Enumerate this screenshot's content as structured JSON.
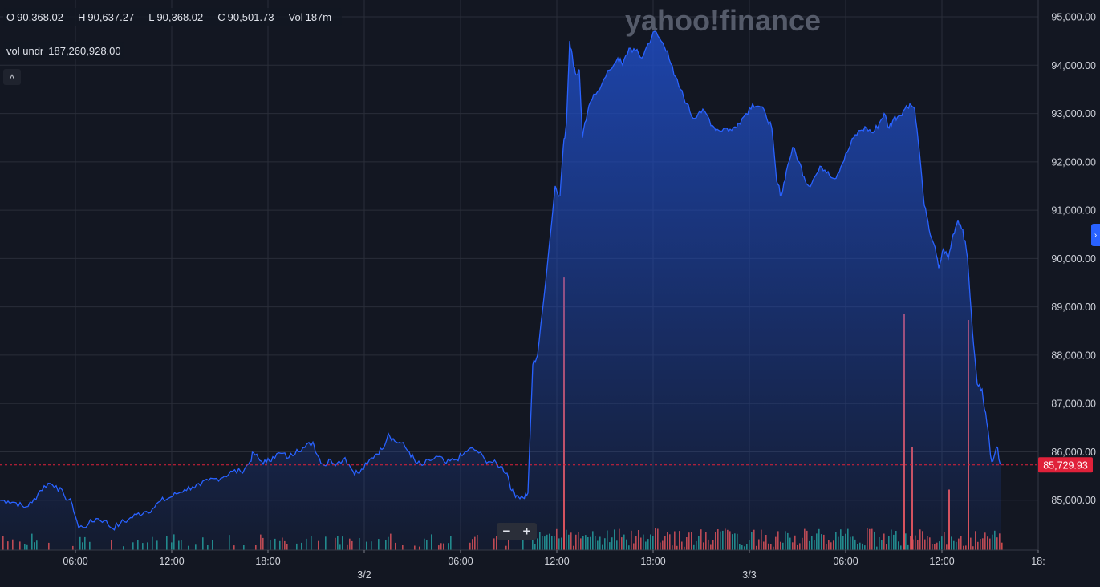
{
  "legend": {
    "open_label": "O",
    "open": "90,368.02",
    "high_label": "H",
    "high": "90,637.27",
    "low_label": "L",
    "low": "90,368.02",
    "close_label": "C",
    "close": "90,501.73",
    "vol_label": "Vol",
    "vol": "187m"
  },
  "volume_indicator": {
    "label": "vol undr",
    "value": "187,260,928.00"
  },
  "controls": {
    "collapse": "˄",
    "zoom_out": "−",
    "zoom_in": "+",
    "scroll_right": "›"
  },
  "watermark": "yahoo!finance",
  "colors": {
    "background": "#131722",
    "line": "#2962ff",
    "area_top": "#1f4cc2",
    "grid": "#2a2e39",
    "volume_up": "#26a69a",
    "volume_down": "#ef5350",
    "last_price": "#e0213a"
  },
  "chart_data": {
    "type": "area",
    "title": "",
    "xlabel": "",
    "ylabel": "",
    "ylim": [
      84050,
      95150
    ],
    "y_ticks": [
      "95,000.00",
      "94,000.00",
      "93,000.00",
      "92,000.00",
      "91,000.00",
      "90,000.00",
      "89,000.00",
      "88,000.00",
      "87,000.00",
      "86,000.00",
      "85,000.00"
    ],
    "x_range": [
      0,
      64.7
    ],
    "x_ticks": [
      {
        "x": 4.7,
        "label": "06:00"
      },
      {
        "x": 10.7,
        "label": "12:00"
      },
      {
        "x": 16.7,
        "label": "18:00"
      },
      {
        "x": 22.7,
        "label": "3/2",
        "date": true
      },
      {
        "x": 28.7,
        "label": "06:00"
      },
      {
        "x": 34.7,
        "label": "12:00"
      },
      {
        "x": 40.7,
        "label": "18:00"
      },
      {
        "x": 46.7,
        "label": "3/3",
        "date": true
      },
      {
        "x": 52.7,
        "label": "06:00"
      },
      {
        "x": 58.7,
        "label": "12:00"
      },
      {
        "x": 64.7,
        "label": "18:"
      }
    ],
    "last_price": "85,729.93",
    "last_price_value": 85729.93,
    "grid": true,
    "series": [
      {
        "values": [
          [
            0.0,
            85000
          ],
          [
            0.5,
            84980
          ],
          [
            1.0,
            84950
          ],
          [
            1.5,
            84850
          ],
          [
            2.0,
            84950
          ],
          [
            2.5,
            85200
          ],
          [
            3.0,
            85350
          ],
          [
            3.5,
            85300
          ],
          [
            4.0,
            85100
          ],
          [
            4.5,
            84920
          ],
          [
            4.9,
            84430
          ],
          [
            5.5,
            84500
          ],
          [
            6.0,
            84620
          ],
          [
            6.5,
            84580
          ],
          [
            7.0,
            84420
          ],
          [
            7.5,
            84520
          ],
          [
            8.0,
            84600
          ],
          [
            8.5,
            84700
          ],
          [
            9.0,
            84760
          ],
          [
            9.5,
            84820
          ],
          [
            10.0,
            84980
          ],
          [
            10.5,
            85040
          ],
          [
            11.0,
            85130
          ],
          [
            11.5,
            85220
          ],
          [
            12.0,
            85280
          ],
          [
            12.5,
            85300
          ],
          [
            13.0,
            85410
          ],
          [
            13.5,
            85450
          ],
          [
            14.0,
            85500
          ],
          [
            14.5,
            85600
          ],
          [
            15.0,
            85590
          ],
          [
            15.5,
            85750
          ],
          [
            15.8,
            85980
          ],
          [
            16.2,
            85820
          ],
          [
            16.6,
            85780
          ],
          [
            17.0,
            85900
          ],
          [
            17.5,
            85970
          ],
          [
            18.0,
            85880
          ],
          [
            18.5,
            86050
          ],
          [
            19.0,
            86090
          ],
          [
            19.5,
            86200
          ],
          [
            19.8,
            85920
          ],
          [
            20.2,
            85720
          ],
          [
            20.6,
            85840
          ],
          [
            21.0,
            85760
          ],
          [
            21.5,
            85880
          ],
          [
            22.0,
            85600
          ],
          [
            22.4,
            85560
          ],
          [
            22.9,
            85760
          ],
          [
            23.4,
            85950
          ],
          [
            23.8,
            86050
          ],
          [
            24.2,
            86380
          ],
          [
            24.6,
            86220
          ],
          [
            25.0,
            86180
          ],
          [
            25.5,
            86000
          ],
          [
            25.9,
            85780
          ],
          [
            26.3,
            85720
          ],
          [
            26.8,
            85820
          ],
          [
            27.3,
            85900
          ],
          [
            27.8,
            85760
          ],
          [
            28.3,
            85830
          ],
          [
            28.8,
            85920
          ],
          [
            29.2,
            86050
          ],
          [
            29.7,
            86030
          ],
          [
            30.2,
            85850
          ],
          [
            30.7,
            85780
          ],
          [
            31.2,
            85700
          ],
          [
            31.6,
            85560
          ],
          [
            31.9,
            85200
          ],
          [
            32.2,
            85100
          ],
          [
            32.6,
            85050
          ],
          [
            32.9,
            85150
          ],
          [
            33.2,
            87800
          ],
          [
            33.5,
            88000
          ],
          [
            33.9,
            89200
          ],
          [
            34.3,
            90500
          ],
          [
            34.6,
            91500
          ],
          [
            34.9,
            91300
          ],
          [
            35.1,
            92300
          ],
          [
            35.3,
            92800
          ],
          [
            35.5,
            94500
          ],
          [
            35.7,
            94100
          ],
          [
            35.9,
            93800
          ],
          [
            36.1,
            93900
          ],
          [
            36.3,
            92500
          ],
          [
            36.6,
            93000
          ],
          [
            37.0,
            93400
          ],
          [
            37.5,
            93600
          ],
          [
            38.0,
            93900
          ],
          [
            38.5,
            94150
          ],
          [
            38.8,
            94000
          ],
          [
            39.2,
            94350
          ],
          [
            39.6,
            94300
          ],
          [
            40.0,
            94150
          ],
          [
            40.4,
            94450
          ],
          [
            40.8,
            94700
          ],
          [
            41.2,
            94500
          ],
          [
            41.6,
            94300
          ],
          [
            42.0,
            93800
          ],
          [
            42.4,
            93500
          ],
          [
            42.8,
            93200
          ],
          [
            43.2,
            92900
          ],
          [
            43.6,
            93050
          ],
          [
            44.0,
            93000
          ],
          [
            44.4,
            92750
          ],
          [
            44.8,
            92650
          ],
          [
            45.2,
            92700
          ],
          [
            45.6,
            92650
          ],
          [
            46.0,
            92800
          ],
          [
            46.5,
            93000
          ],
          [
            46.9,
            93200
          ],
          [
            47.3,
            93150
          ],
          [
            47.7,
            93000
          ],
          [
            48.1,
            92700
          ],
          [
            48.4,
            91600
          ],
          [
            48.7,
            91300
          ],
          [
            49.0,
            91800
          ],
          [
            49.4,
            92300
          ],
          [
            49.8,
            92000
          ],
          [
            50.1,
            91700
          ],
          [
            50.4,
            91500
          ],
          [
            50.8,
            91700
          ],
          [
            51.2,
            91900
          ],
          [
            51.6,
            91800
          ],
          [
            52.0,
            91650
          ],
          [
            52.4,
            91900
          ],
          [
            52.8,
            92200
          ],
          [
            53.2,
            92500
          ],
          [
            53.6,
            92650
          ],
          [
            54.0,
            92700
          ],
          [
            54.4,
            92600
          ],
          [
            54.8,
            92800
          ],
          [
            55.1,
            93000
          ],
          [
            55.4,
            92700
          ],
          [
            55.7,
            92900
          ],
          [
            56.0,
            92950
          ],
          [
            56.4,
            93100
          ],
          [
            56.7,
            93200
          ],
          [
            57.0,
            93100
          ],
          [
            57.3,
            92200
          ],
          [
            57.6,
            91100
          ],
          [
            57.9,
            90600
          ],
          [
            58.2,
            90300
          ],
          [
            58.5,
            89800
          ],
          [
            58.8,
            90200
          ],
          [
            59.1,
            90000
          ],
          [
            59.4,
            90500
          ],
          [
            59.7,
            90800
          ],
          [
            60.0,
            90600
          ],
          [
            60.3,
            90000
          ],
          [
            60.6,
            88500
          ],
          [
            60.9,
            87400
          ],
          [
            61.2,
            87300
          ],
          [
            61.5,
            86600
          ],
          [
            61.8,
            85800
          ],
          [
            62.1,
            86100
          ],
          [
            62.4,
            85730
          ]
        ]
      }
    ],
    "volume": {
      "x_step": 0.15,
      "max": 95000,
      "spikes": [
        {
          "x": 35.1,
          "value": 45000,
          "dir": "down"
        },
        {
          "x": 56.3,
          "value": 39000,
          "dir": "down"
        },
        {
          "x": 60.3,
          "value": 38000,
          "dir": "down"
        },
        {
          "x": 56.8,
          "value": 17000,
          "dir": "down"
        },
        {
          "x": 59.1,
          "value": 10000,
          "dir": "down"
        }
      ]
    }
  }
}
